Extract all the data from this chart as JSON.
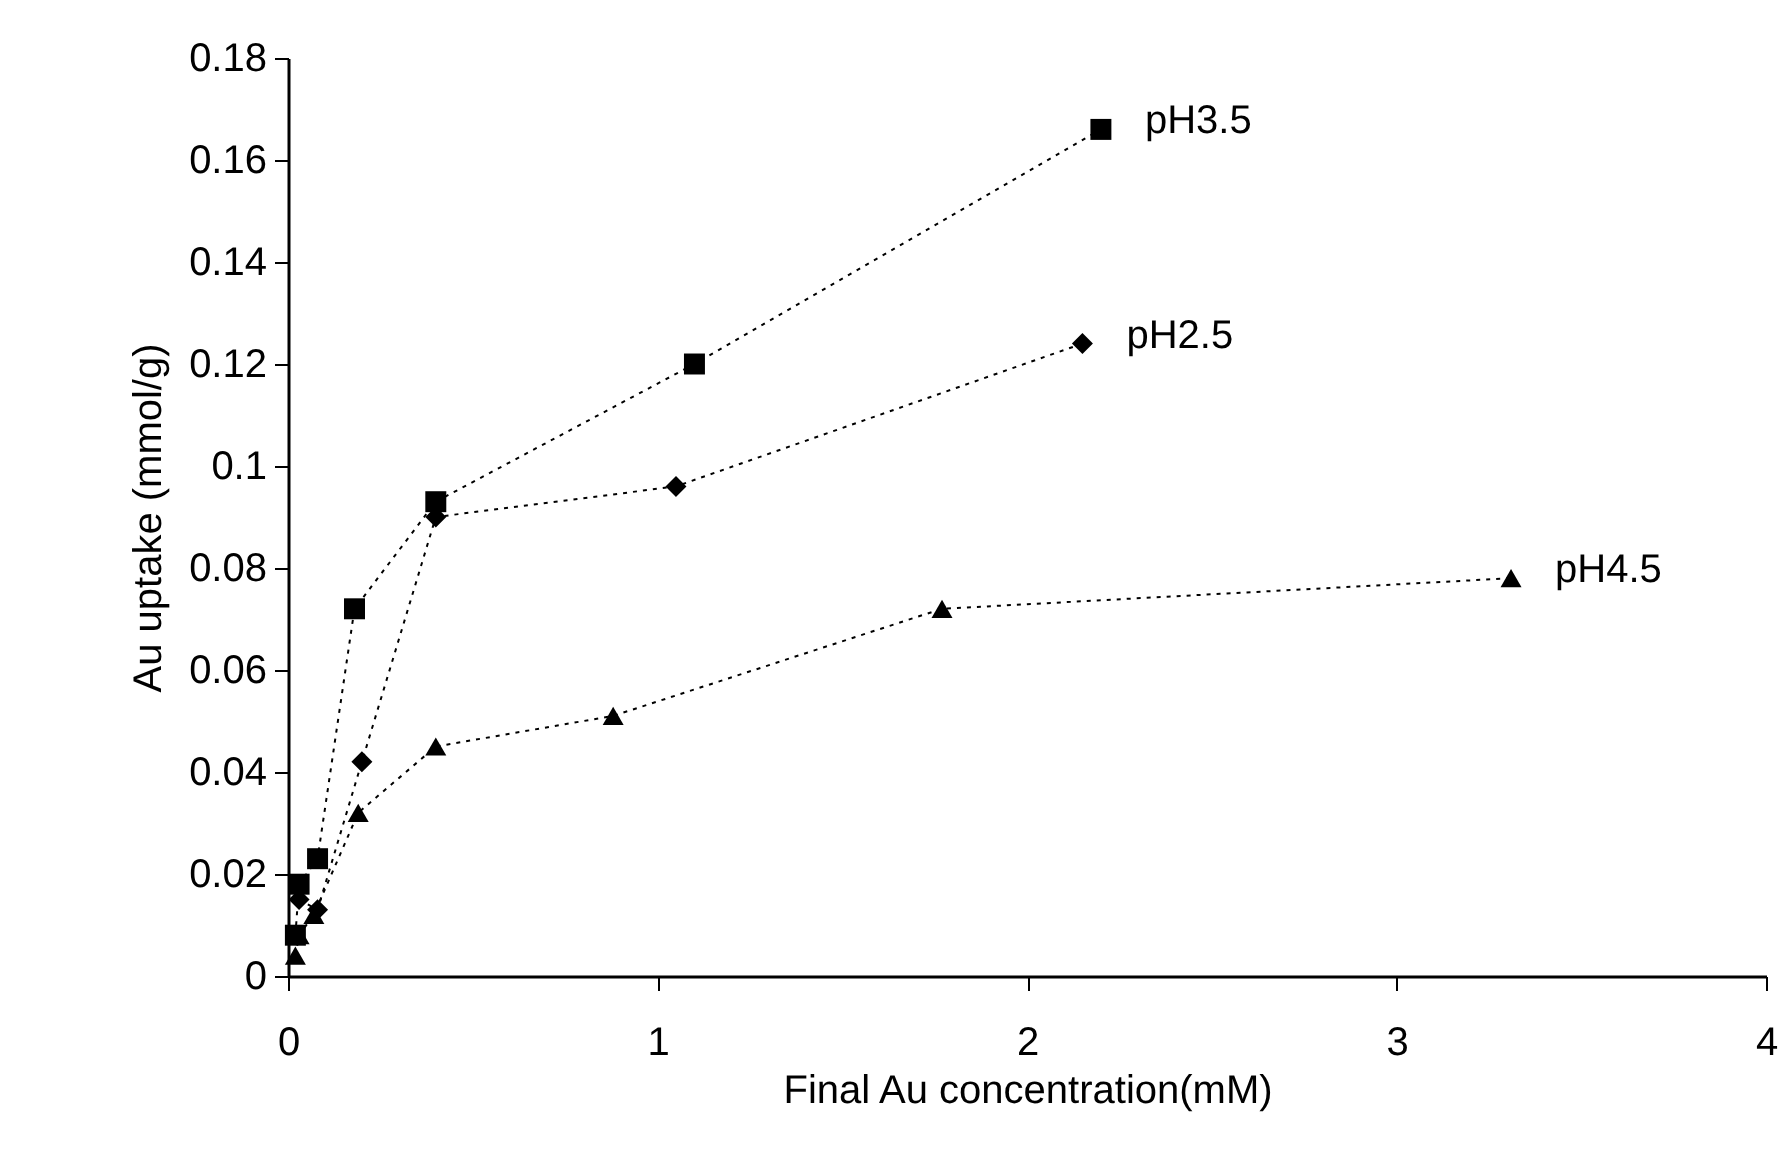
{
  "chart_data": {
    "type": "line",
    "xlabel": "Final Au concentration(mM)",
    "ylabel": "Au uptake (mmol/g)",
    "xlim": [
      0,
      4
    ],
    "xticks": [
      0,
      1,
      2,
      3,
      4
    ],
    "ylim": [
      0,
      0.18
    ],
    "yticks": [
      0,
      0.02,
      0.04,
      0.06,
      0.08,
      0.1,
      0.12,
      0.14,
      0.16,
      0.18
    ],
    "grid": false,
    "legend": false,
    "line_style": "dotted",
    "series": [
      {
        "name": "pH3.5",
        "color": "#000000",
        "marker": "square",
        "x": [
          0.02,
          0.03,
          0.08,
          0.18,
          0.4,
          1.1,
          2.2
        ],
        "values": [
          0.008,
          0.018,
          0.023,
          0.072,
          0.093,
          0.12,
          0.166
        ]
      },
      {
        "name": "pH2.5",
        "color": "#000000",
        "marker": "diamond",
        "x": [
          0.03,
          0.08,
          0.2,
          0.4,
          1.05,
          2.15
        ],
        "values": [
          0.015,
          0.013,
          0.042,
          0.09,
          0.096,
          0.124
        ]
      },
      {
        "name": "pH4.5",
        "color": "#000000",
        "marker": "triangle",
        "x": [
          0.02,
          0.03,
          0.07,
          0.19,
          0.4,
          0.88,
          1.77,
          3.31
        ],
        "values": [
          0.004,
          0.008,
          0.012,
          0.032,
          0.045,
          0.051,
          0.072,
          0.078
        ]
      }
    ]
  }
}
